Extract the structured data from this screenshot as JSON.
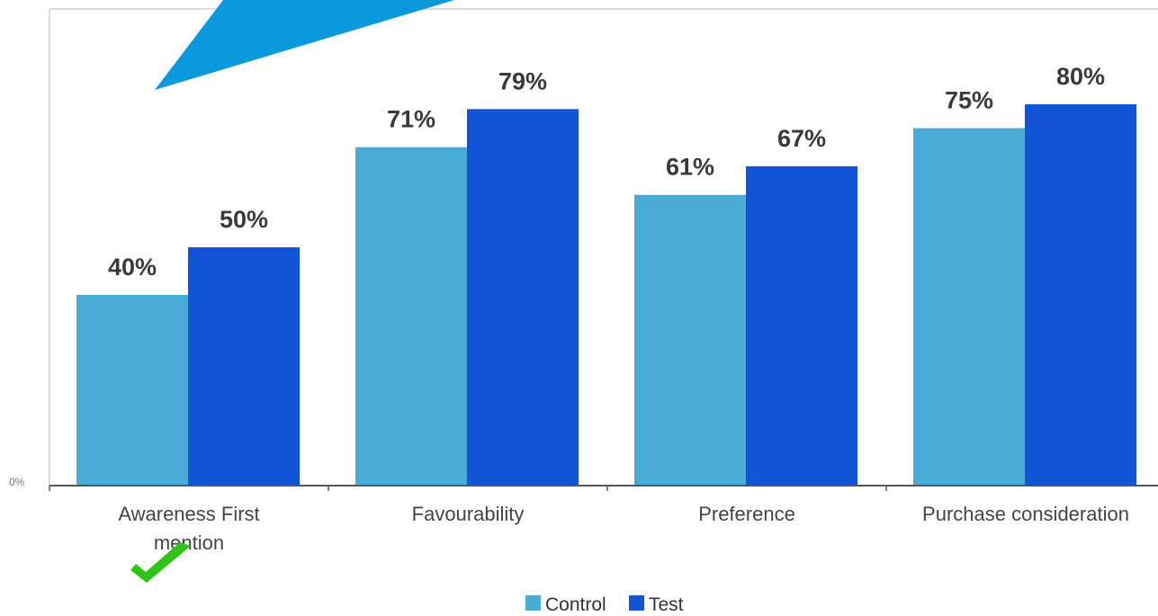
{
  "chart_data": {
    "type": "bar",
    "categories": [
      "Awareness First mention",
      "Favourability",
      "Preference",
      "Purchase consideration"
    ],
    "category_lines": [
      [
        "Awareness First",
        "mention"
      ],
      [
        "Favourability"
      ],
      [
        "Preference"
      ],
      [
        "Purchase consideration"
      ]
    ],
    "series": [
      {
        "name": "Control",
        "values": [
          40,
          71,
          61,
          75
        ],
        "labels": [
          "40%",
          "71%",
          "61%",
          "75%"
        ],
        "color": "#48acd6"
      },
      {
        "name": "Test",
        "values": [
          50,
          79,
          67,
          80
        ],
        "labels": [
          "50%",
          "79%",
          "67%",
          "80%"
        ],
        "color": "#1155d6"
      }
    ],
    "y_tick_label": "0%",
    "ylim": [
      0,
      100
    ],
    "grid": false,
    "legend_position": "bottom-center",
    "annotations": {
      "checkmark": {
        "category": "Awareness First mention",
        "color": "#2ec41a",
        "icon": "checkmark-icon"
      },
      "arrow": {
        "color": "#0a99dd",
        "icon": "arrow-pointer-icon"
      }
    }
  }
}
